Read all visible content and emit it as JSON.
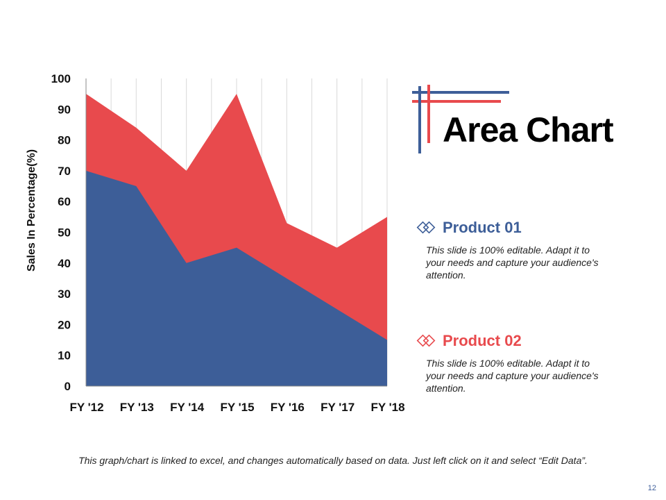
{
  "colors": {
    "product01": "#3d5e98",
    "product02": "#e84a4d",
    "grid": "#d9d9d9",
    "axis": "#888888"
  },
  "title": "Area Chart",
  "products": [
    {
      "title": "Product 01",
      "description": "This slide is 100% editable. Adapt it to your needs and capture your audience's attention."
    },
    {
      "title": "Product 02",
      "description": "This slide is 100% editable. Adapt it to your needs and capture your audience's attention."
    }
  ],
  "footer_note": "This graph/chart is linked to excel, and changes automatically based on data. Just left click on it and select “Edit Data”.",
  "page_number": "12",
  "chart_data": {
    "type": "area",
    "title": "",
    "xlabel": "",
    "ylabel": "Sales In Percentage(%)",
    "categories": [
      "FY '12",
      "FY '13",
      "FY '14",
      "FY '15",
      "FY '16",
      "FY '17",
      "FY '18"
    ],
    "ylim": [
      0,
      100
    ],
    "yticks": [
      0,
      10,
      20,
      30,
      40,
      50,
      60,
      70,
      80,
      90,
      100
    ],
    "grid": "vertical",
    "series": [
      {
        "name": "Product 01",
        "values": [
          70,
          65,
          40,
          45,
          35,
          25,
          15
        ]
      },
      {
        "name": "Product 02",
        "values": [
          95,
          84,
          70,
          95,
          53,
          45,
          55
        ]
      }
    ]
  }
}
